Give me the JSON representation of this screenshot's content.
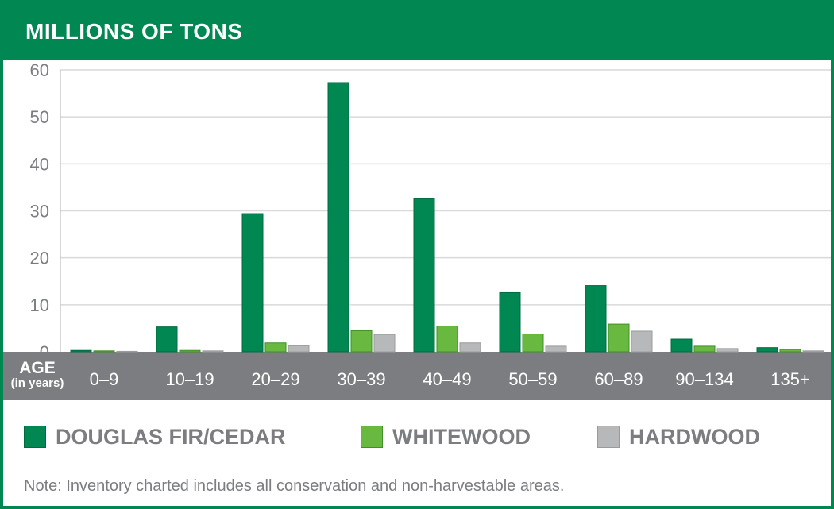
{
  "header": {
    "title": "MILLIONS OF TONS"
  },
  "axis": {
    "age_label": "AGE",
    "age_sublabel": "(in years)"
  },
  "legend": {
    "items": [
      {
        "label": "DOUGLAS FIR/CEDAR",
        "color": "#008752"
      },
      {
        "label": "WHITEWOOD",
        "color": "#69b83f"
      },
      {
        "label": "HARDWOOD",
        "color": "#b7b8ba"
      }
    ]
  },
  "note": "Note: Inventory charted includes all conservation and non-harvestable areas.",
  "colors": {
    "brand": "#008752",
    "axis_band": "#7b7d80",
    "grid": "#d9d9d9",
    "tick_text": "#7b7d80"
  },
  "chart_data": {
    "type": "bar",
    "title": "MILLIONS OF TONS",
    "xlabel": "AGE (in years)",
    "ylabel": "",
    "ylim": [
      0,
      60
    ],
    "yticks": [
      0,
      10,
      20,
      30,
      40,
      50,
      60
    ],
    "grid": true,
    "legend_position": "bottom",
    "categories": [
      "0–9",
      "10–19",
      "20–29",
      "30–39",
      "40–49",
      "50–59",
      "60–89",
      "90–134",
      "135+"
    ],
    "series": [
      {
        "name": "DOUGLAS FIR/CEDAR",
        "values": [
          0.3,
          5.3,
          29.4,
          57.3,
          32.7,
          12.6,
          14.1,
          2.7,
          0.9
        ]
      },
      {
        "name": "WHITEWOOD",
        "values": [
          0.2,
          0.3,
          1.9,
          4.5,
          5.5,
          3.8,
          5.9,
          1.2,
          0.5
        ]
      },
      {
        "name": "HARDWOOD",
        "values": [
          0.1,
          0.2,
          1.3,
          3.7,
          1.9,
          1.2,
          4.4,
          0.7,
          0.2
        ]
      }
    ]
  }
}
